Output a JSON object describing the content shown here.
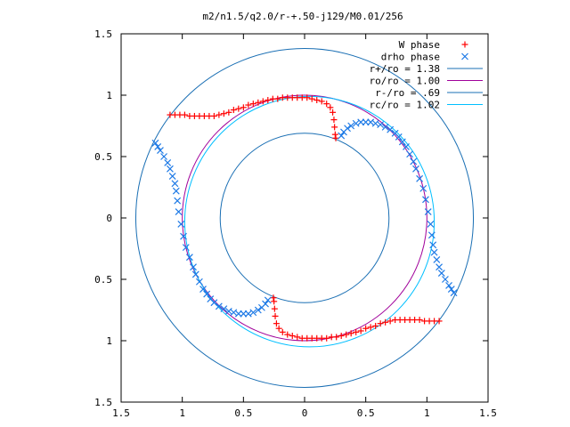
{
  "title": "m2/n1.5/q2.0/r-+.50-j129/M0.01/256",
  "chart_data": {
    "type": "scatter",
    "title": "m2/n1.5/q2.0/r-+.50-j129/M0.01/256",
    "xlabel": "",
    "ylabel": "",
    "xlim": [
      -1.5,
      1.5
    ],
    "ylim": [
      -1.5,
      1.5
    ],
    "x_tick_labels": [
      "1.5",
      "1",
      "0.5",
      "0",
      "0.5",
      "1",
      "1.5"
    ],
    "y_tick_labels": [
      "1.5",
      "1",
      "0.5",
      "0",
      "0.5",
      "1",
      "1.5"
    ],
    "x_tick_values": [
      -1.5,
      -1,
      -0.5,
      0,
      0.5,
      1,
      1.5
    ],
    "y_tick_values": [
      1.5,
      1,
      0.5,
      0,
      -0.5,
      -1,
      -1.5
    ],
    "grid": false,
    "legend_position": "top-right",
    "series": [
      {
        "name": "W phase",
        "kind": "points",
        "marker": "plus",
        "color": "#ff0000",
        "points": [
          [
            -1.1,
            0.84
          ],
          [
            -1.06,
            0.84
          ],
          [
            -1.02,
            0.84
          ],
          [
            -0.98,
            0.84
          ],
          [
            -0.94,
            0.83
          ],
          [
            -0.9,
            0.83
          ],
          [
            -0.86,
            0.83
          ],
          [
            -0.82,
            0.83
          ],
          [
            -0.78,
            0.83
          ],
          [
            -0.74,
            0.83
          ],
          [
            -0.7,
            0.84
          ],
          [
            -0.66,
            0.85
          ],
          [
            -0.62,
            0.86
          ],
          [
            -0.58,
            0.88
          ],
          [
            -0.54,
            0.89
          ],
          [
            -0.5,
            0.9
          ],
          [
            -0.46,
            0.92
          ],
          [
            -0.42,
            0.93
          ],
          [
            -0.38,
            0.94
          ],
          [
            -0.34,
            0.95
          ],
          [
            -0.3,
            0.96
          ],
          [
            -0.26,
            0.97
          ],
          [
            -0.22,
            0.97
          ],
          [
            -0.18,
            0.98
          ],
          [
            -0.14,
            0.98
          ],
          [
            -0.1,
            0.98
          ],
          [
            -0.06,
            0.98
          ],
          [
            -0.02,
            0.98
          ],
          [
            0.02,
            0.98
          ],
          [
            0.06,
            0.97
          ],
          [
            0.1,
            0.96
          ],
          [
            0.14,
            0.95
          ],
          [
            0.18,
            0.93
          ],
          [
            0.21,
            0.9
          ],
          [
            0.23,
            0.86
          ],
          [
            0.24,
            0.8
          ],
          [
            0.245,
            0.74
          ],
          [
            0.25,
            0.68
          ],
          [
            0.255,
            0.65
          ],
          [
            1.1,
            -0.84
          ],
          [
            1.06,
            -0.84
          ],
          [
            1.02,
            -0.84
          ],
          [
            0.98,
            -0.84
          ],
          [
            0.94,
            -0.83
          ],
          [
            0.9,
            -0.83
          ],
          [
            0.86,
            -0.83
          ],
          [
            0.82,
            -0.83
          ],
          [
            0.78,
            -0.83
          ],
          [
            0.74,
            -0.83
          ],
          [
            0.7,
            -0.84
          ],
          [
            0.66,
            -0.85
          ],
          [
            0.62,
            -0.86
          ],
          [
            0.58,
            -0.88
          ],
          [
            0.54,
            -0.89
          ],
          [
            0.5,
            -0.9
          ],
          [
            0.46,
            -0.92
          ],
          [
            0.42,
            -0.93
          ],
          [
            0.38,
            -0.94
          ],
          [
            0.34,
            -0.95
          ],
          [
            0.3,
            -0.96
          ],
          [
            0.26,
            -0.97
          ],
          [
            0.22,
            -0.97
          ],
          [
            0.18,
            -0.98
          ],
          [
            0.14,
            -0.98
          ],
          [
            0.1,
            -0.98
          ],
          [
            0.06,
            -0.98
          ],
          [
            0.02,
            -0.98
          ],
          [
            -0.02,
            -0.98
          ],
          [
            -0.06,
            -0.97
          ],
          [
            -0.1,
            -0.96
          ],
          [
            -0.14,
            -0.95
          ],
          [
            -0.18,
            -0.93
          ],
          [
            -0.21,
            -0.9
          ],
          [
            -0.23,
            -0.86
          ],
          [
            -0.24,
            -0.8
          ],
          [
            -0.245,
            -0.74
          ],
          [
            -0.25,
            -0.68
          ],
          [
            -0.255,
            -0.65
          ]
        ]
      },
      {
        "name": "drho phase",
        "kind": "points",
        "marker": "cross",
        "color": "#1e7ae6",
        "points": [
          [
            0.3,
            0.67
          ],
          [
            0.32,
            0.7
          ],
          [
            0.35,
            0.73
          ],
          [
            0.38,
            0.75
          ],
          [
            0.42,
            0.77
          ],
          [
            0.46,
            0.78
          ],
          [
            0.5,
            0.78
          ],
          [
            0.54,
            0.78
          ],
          [
            0.58,
            0.77
          ],
          [
            0.62,
            0.76
          ],
          [
            0.66,
            0.74
          ],
          [
            0.7,
            0.72
          ],
          [
            0.74,
            0.69
          ],
          [
            0.77,
            0.66
          ],
          [
            0.8,
            0.62
          ],
          [
            0.83,
            0.58
          ],
          [
            0.86,
            0.52
          ],
          [
            0.89,
            0.46
          ],
          [
            0.91,
            0.4
          ],
          [
            0.94,
            0.32
          ],
          [
            0.97,
            0.24
          ],
          [
            0.99,
            0.15
          ],
          [
            1.01,
            0.05
          ],
          [
            1.03,
            -0.05
          ],
          [
            1.04,
            -0.14
          ],
          [
            1.05,
            -0.22
          ],
          [
            1.06,
            -0.28
          ],
          [
            1.08,
            -0.34
          ],
          [
            1.1,
            -0.4
          ],
          [
            1.12,
            -0.45
          ],
          [
            1.15,
            -0.5
          ],
          [
            1.18,
            -0.55
          ],
          [
            1.2,
            -0.58
          ],
          [
            1.22,
            -0.61
          ],
          [
            -0.3,
            -0.67
          ],
          [
            -0.32,
            -0.7
          ],
          [
            -0.35,
            -0.73
          ],
          [
            -0.38,
            -0.75
          ],
          [
            -0.42,
            -0.77
          ],
          [
            -0.46,
            -0.78
          ],
          [
            -0.5,
            -0.78
          ],
          [
            -0.54,
            -0.78
          ],
          [
            -0.58,
            -0.77
          ],
          [
            -0.62,
            -0.76
          ],
          [
            -0.66,
            -0.74
          ],
          [
            -0.7,
            -0.72
          ],
          [
            -0.74,
            -0.69
          ],
          [
            -0.77,
            -0.66
          ],
          [
            -0.8,
            -0.62
          ],
          [
            -0.83,
            -0.58
          ],
          [
            -0.86,
            -0.52
          ],
          [
            -0.89,
            -0.46
          ],
          [
            -0.91,
            -0.4
          ],
          [
            -0.94,
            -0.32
          ],
          [
            -0.97,
            -0.24
          ],
          [
            -0.99,
            -0.15
          ],
          [
            -1.01,
            -0.05
          ],
          [
            -1.03,
            0.05
          ],
          [
            -1.04,
            0.14
          ],
          [
            -1.05,
            0.22
          ],
          [
            -1.06,
            0.28
          ],
          [
            -1.08,
            0.34
          ],
          [
            -1.1,
            0.4
          ],
          [
            -1.12,
            0.45
          ],
          [
            -1.15,
            0.5
          ],
          [
            -1.18,
            0.55
          ],
          [
            -1.2,
            0.58
          ],
          [
            -1.22,
            0.61
          ]
        ]
      },
      {
        "name": "r+/ro = 1.38",
        "kind": "circle",
        "radius": 1.38,
        "color": "#1a6fb4"
      },
      {
        "name": "ro/ro = 1.00",
        "kind": "circle",
        "radius": 1.0,
        "center": [
          0,
          0
        ],
        "color": "#a0009a"
      },
      {
        "name": "r-/ro = .69",
        "kind": "circle",
        "radius": 0.69,
        "color": "#1a6fb4"
      },
      {
        "name": "rc/ro = 1.02",
        "kind": "circle",
        "radius": 1.02,
        "center": [
          0.04,
          -0.03
        ],
        "color": "#00bfff"
      }
    ]
  }
}
